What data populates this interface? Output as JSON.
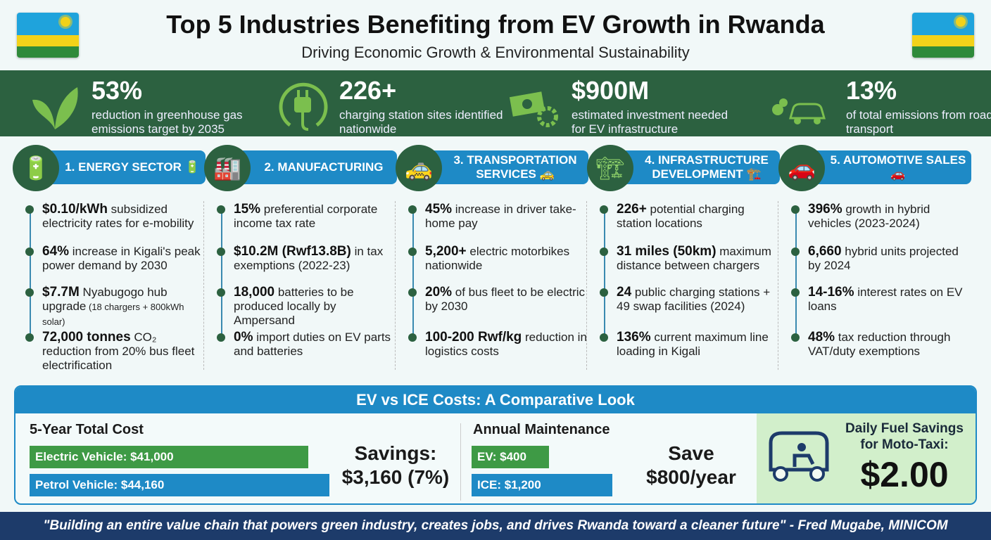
{
  "header": {
    "title": "Top 5 Industries Benefiting from EV Growth in Rwanda",
    "subtitle": "Driving Economic Growth & Environmental Sustainability"
  },
  "stats": [
    {
      "value": "53%",
      "desc": "reduction in greenhouse gas emissions target by 2035",
      "icon": "leaf-icon"
    },
    {
      "value": "226+",
      "desc": "charging station sites identified nationwide",
      "icon": "plug-icon"
    },
    {
      "value": "$900M",
      "desc": "estimated investment needed for EV infrastructure",
      "icon": "money-gear-icon"
    },
    {
      "value": "13%",
      "desc": "of total emissions from road transport",
      "icon": "car-emissions-icon"
    }
  ],
  "industries": [
    {
      "title": "1. ENERGY SECTOR 🔋",
      "icon": "battery-icon",
      "items": [
        {
          "b": "$0.10/kWh",
          "t": " subsidized electricity rates for e-mobility"
        },
        {
          "b": "64%",
          "t": " increase in Kigali's peak power demand by 2030"
        },
        {
          "b": "$7.7M",
          "t": " Nyabugogo hub upgrade",
          "s": " (18 chargers + 800kWh solar)"
        },
        {
          "b": "72,000 tonnes",
          "t": " CO₂ reduction from 20% bus fleet electrification"
        }
      ]
    },
    {
      "title": "2. MANUFACTURING",
      "icon": "factory-icon",
      "items": [
        {
          "b": "15%",
          "t": " preferential corporate income tax rate"
        },
        {
          "b": "$10.2M (Rwf13.8B)",
          "t": " in tax exemptions (2022-23)"
        },
        {
          "b": "18,000",
          "t": " batteries to be produced locally by Ampersand"
        },
        {
          "b": "0%",
          "t": " import duties on EV parts and batteries"
        }
      ]
    },
    {
      "title": "3. TRANSPORTATION SERVICES 🚕",
      "icon": "taxi-icon",
      "items": [
        {
          "b": "45%",
          "t": " increase in driver take-home pay"
        },
        {
          "b": "5,200+",
          "t": " electric motorbikes nationwide"
        },
        {
          "b": "20%",
          "t": " of bus fleet to be electric by 2030"
        },
        {
          "b": "100-200 Rwf/kg",
          "t": " reduction in logistics costs"
        }
      ]
    },
    {
      "title": "4. INFRASTRUCTURE DEVELOPMENT 🏗️",
      "icon": "crane-icon",
      "items": [
        {
          "b": "226+",
          "t": " potential charging station locations"
        },
        {
          "b": "31 miles (50km)",
          "t": " maximum distance between chargers"
        },
        {
          "b": "24",
          "t": " public charging stations + 49 swap facilities (2024)"
        },
        {
          "b": "136%",
          "t": " current maximum line loading in Kigali"
        }
      ]
    },
    {
      "title": "5. AUTOMOTIVE SALES 🚗",
      "icon": "car-icon",
      "items": [
        {
          "b": "396%",
          "t": " growth in hybrid vehicles (2023-2024)"
        },
        {
          "b": "6,660",
          "t": " hybrid units projected by 2024"
        },
        {
          "b": "14-16%",
          "t": " interest rates on EV loans"
        },
        {
          "b": "48%",
          "t": " tax reduction through VAT/duty exemptions"
        }
      ]
    }
  ],
  "comparison": {
    "title": "EV vs ICE Costs: A Comparative Look",
    "total": {
      "label": "5-Year Total Cost",
      "ev": "Electric Vehicle: $41,000",
      "ice": "Petrol Vehicle: $44,160",
      "ev_value": 41000,
      "ice_value": 44160,
      "savings_label": "Savings:",
      "savings": "$3,160 (7%)"
    },
    "maint": {
      "label": "Annual Maintenance",
      "ev": "EV: $400",
      "ice": "ICE: $1,200",
      "ev_value": 400,
      "ice_value": 1200,
      "savings_label": "Save",
      "savings": "$800/year"
    },
    "moto": {
      "label": "Daily Fuel Savings for Moto-Taxi:",
      "value": "$2.00"
    },
    "colors": {
      "ev": "#3e9a45",
      "ice": "#1e8ac6"
    }
  },
  "footer": "\"Building an entire value chain that powers green industry, creates jobs, and drives Rwanda toward a cleaner future\" - Fred Mugabe, MINICOM"
}
